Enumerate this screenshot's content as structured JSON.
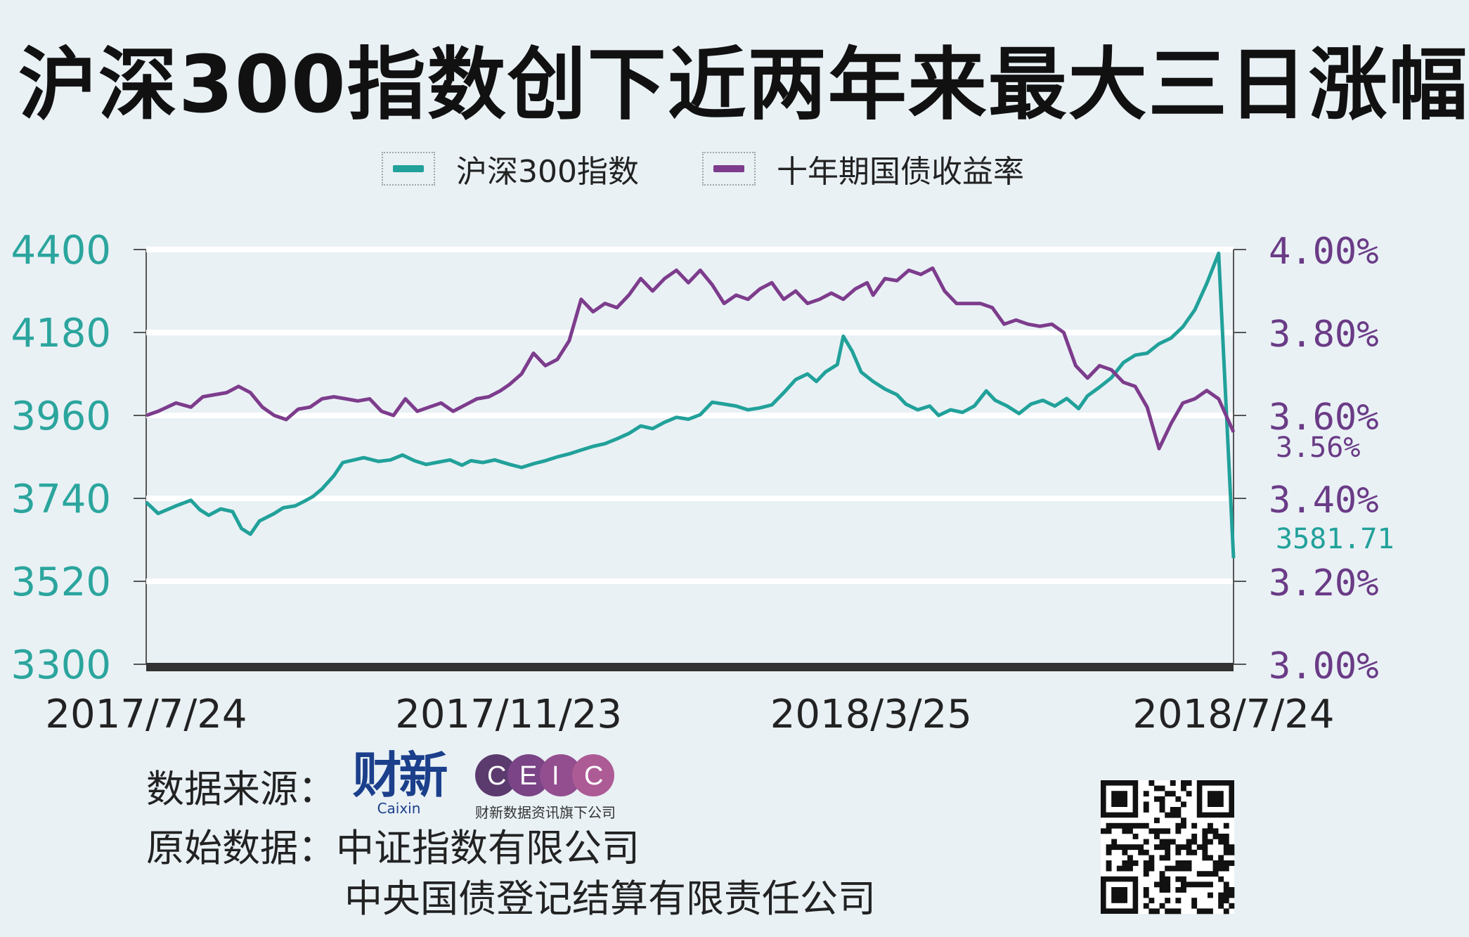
{
  "title": "沪深300指数创下近两年来最大三日涨幅",
  "legend": {
    "series1_label": "沪深300指数",
    "series2_label": "十年期国债收益率"
  },
  "colors": {
    "series1": "#21a19a",
    "series2": "#7d3c8c",
    "left_axis_text": "#2ba59d",
    "right_axis_text": "#6a3b86",
    "gridline": "#ffffff",
    "plot_bg": "#e9f1f5"
  },
  "chart_data": {
    "type": "line",
    "x_tick_labels": [
      "2017/7/24",
      "2017/11/23",
      "2018/3/25",
      "2018/7/24"
    ],
    "x_range": [
      "2017-07-24",
      "2018-07-24"
    ],
    "y_left": {
      "ticks": [
        "4400",
        "4180",
        "3960",
        "3740",
        "3520",
        "3300"
      ],
      "range": [
        3300,
        4400
      ]
    },
    "y_right": {
      "ticks": [
        "4.00%",
        "3.80%",
        "3.60%",
        "3.40%",
        "3.20%",
        "3.00%"
      ],
      "range": [
        3.0,
        4.0
      ]
    },
    "grid": true,
    "legend_position": "top-center",
    "end_labels": {
      "series1": "3581.71",
      "series2": "3.56%"
    },
    "series": [
      {
        "name": "沪深300指数",
        "axis": "left",
        "points": [
          [
            "2017-07-24",
            3730
          ],
          [
            "2017-07-28",
            3700
          ],
          [
            "2017-08-03",
            3720
          ],
          [
            "2017-08-08",
            3735
          ],
          [
            "2017-08-11",
            3710
          ],
          [
            "2017-08-14",
            3695
          ],
          [
            "2017-08-18",
            3712
          ],
          [
            "2017-08-22",
            3705
          ],
          [
            "2017-08-25",
            3660
          ],
          [
            "2017-08-28",
            3645
          ],
          [
            "2017-08-31",
            3680
          ],
          [
            "2017-09-05",
            3700
          ],
          [
            "2017-09-08",
            3715
          ],
          [
            "2017-09-12",
            3720
          ],
          [
            "2017-09-15",
            3732
          ],
          [
            "2017-09-18",
            3745
          ],
          [
            "2017-09-21",
            3765
          ],
          [
            "2017-09-25",
            3800
          ],
          [
            "2017-09-28",
            3835
          ],
          [
            "2017-10-05",
            3848
          ],
          [
            "2017-10-10",
            3838
          ],
          [
            "2017-10-14",
            3842
          ],
          [
            "2017-10-18",
            3855
          ],
          [
            "2017-10-22",
            3840
          ],
          [
            "2017-10-26",
            3830
          ],
          [
            "2017-10-30",
            3836
          ],
          [
            "2017-11-03",
            3842
          ],
          [
            "2017-11-07",
            3828
          ],
          [
            "2017-11-10",
            3840
          ],
          [
            "2017-11-14",
            3835
          ],
          [
            "2017-11-18",
            3842
          ],
          [
            "2017-11-23",
            3830
          ],
          [
            "2017-11-27",
            3822
          ],
          [
            "2017-12-01",
            3832
          ],
          [
            "2017-12-05",
            3840
          ],
          [
            "2017-12-09",
            3850
          ],
          [
            "2017-12-13",
            3858
          ],
          [
            "2017-12-17",
            3868
          ],
          [
            "2017-12-21",
            3878
          ],
          [
            "2017-12-25",
            3885
          ],
          [
            "2017-12-29",
            3898
          ],
          [
            "2018-01-02",
            3912
          ],
          [
            "2018-01-06",
            3932
          ],
          [
            "2018-01-10",
            3925
          ],
          [
            "2018-01-14",
            3942
          ],
          [
            "2018-01-18",
            3955
          ],
          [
            "2018-01-22",
            3950
          ],
          [
            "2018-01-26",
            3962
          ],
          [
            "2018-01-30",
            3995
          ],
          [
            "2018-02-03",
            3990
          ],
          [
            "2018-02-07",
            3985
          ],
          [
            "2018-02-11",
            3975
          ],
          [
            "2018-02-15",
            3980
          ],
          [
            "2018-02-19",
            3988
          ],
          [
            "2018-02-23",
            4020
          ],
          [
            "2018-02-27",
            4055
          ],
          [
            "2018-03-03",
            4070
          ],
          [
            "2018-03-06",
            4050
          ],
          [
            "2018-03-09",
            4075
          ],
          [
            "2018-03-13",
            4095
          ],
          [
            "2018-03-15",
            4170
          ],
          [
            "2018-03-18",
            4130
          ],
          [
            "2018-03-21",
            4075
          ],
          [
            "2018-03-25",
            4050
          ],
          [
            "2018-03-29",
            4030
          ],
          [
            "2018-04-02",
            4015
          ],
          [
            "2018-04-05",
            3990
          ],
          [
            "2018-04-09",
            3975
          ],
          [
            "2018-04-13",
            3985
          ],
          [
            "2018-04-16",
            3960
          ],
          [
            "2018-04-20",
            3975
          ],
          [
            "2018-04-24",
            3968
          ],
          [
            "2018-04-28",
            3985
          ],
          [
            "2018-05-02",
            4025
          ],
          [
            "2018-05-05",
            4000
          ],
          [
            "2018-05-09",
            3985
          ],
          [
            "2018-05-13",
            3965
          ],
          [
            "2018-05-17",
            3990
          ],
          [
            "2018-05-21",
            4000
          ],
          [
            "2018-05-25",
            3985
          ],
          [
            "2018-05-29",
            4005
          ],
          [
            "2018-06-02",
            3978
          ],
          [
            "2018-06-05",
            4012
          ],
          [
            "2018-06-09",
            4035
          ],
          [
            "2018-06-13",
            4060
          ],
          [
            "2018-06-17",
            4100
          ],
          [
            "2018-06-21",
            4120
          ],
          [
            "2018-06-25",
            4125
          ],
          [
            "2018-06-29",
            4150
          ],
          [
            "2018-07-03",
            4165
          ],
          [
            "2018-07-07",
            4195
          ],
          [
            "2018-07-11",
            4240
          ],
          [
            "2018-07-15",
            4310
          ],
          [
            "2018-07-19",
            4390
          ],
          [
            "2018-07-24",
            3581.71
          ]
        ]
      },
      {
        "name": "十年期国债收益率",
        "axis": "right",
        "points": [
          [
            "2017-07-24",
            3.6
          ],
          [
            "2017-07-28",
            3.61
          ],
          [
            "2017-08-03",
            3.63
          ],
          [
            "2017-08-08",
            3.62
          ],
          [
            "2017-08-12",
            3.645
          ],
          [
            "2017-08-16",
            3.65
          ],
          [
            "2017-08-20",
            3.655
          ],
          [
            "2017-08-24",
            3.67
          ],
          [
            "2017-08-28",
            3.655
          ],
          [
            "2017-09-01",
            3.62
          ],
          [
            "2017-09-05",
            3.6
          ],
          [
            "2017-09-09",
            3.59
          ],
          [
            "2017-09-13",
            3.615
          ],
          [
            "2017-09-17",
            3.62
          ],
          [
            "2017-09-21",
            3.64
          ],
          [
            "2017-09-25",
            3.645
          ],
          [
            "2017-09-29",
            3.64
          ],
          [
            "2017-10-03",
            3.635
          ],
          [
            "2017-10-07",
            3.64
          ],
          [
            "2017-10-11",
            3.61
          ],
          [
            "2017-10-15",
            3.6
          ],
          [
            "2017-10-19",
            3.64
          ],
          [
            "2017-10-23",
            3.61
          ],
          [
            "2017-10-27",
            3.62
          ],
          [
            "2017-10-31",
            3.63
          ],
          [
            "2017-11-04",
            3.61
          ],
          [
            "2017-11-08",
            3.625
          ],
          [
            "2017-11-12",
            3.64
          ],
          [
            "2017-11-16",
            3.645
          ],
          [
            "2017-11-20",
            3.66
          ],
          [
            "2017-11-23",
            3.675
          ],
          [
            "2017-11-27",
            3.7
          ],
          [
            "2017-12-01",
            3.75
          ],
          [
            "2017-12-05",
            3.72
          ],
          [
            "2017-12-09",
            3.735
          ],
          [
            "2017-12-13",
            3.78
          ],
          [
            "2017-12-17",
            3.88
          ],
          [
            "2017-12-21",
            3.85
          ],
          [
            "2017-12-25",
            3.87
          ],
          [
            "2017-12-29",
            3.86
          ],
          [
            "2018-01-02",
            3.89
          ],
          [
            "2018-01-06",
            3.93
          ],
          [
            "2018-01-10",
            3.9
          ],
          [
            "2018-01-14",
            3.93
          ],
          [
            "2018-01-18",
            3.95
          ],
          [
            "2018-01-22",
            3.92
          ],
          [
            "2018-01-26",
            3.95
          ],
          [
            "2018-01-30",
            3.915
          ],
          [
            "2018-02-03",
            3.87
          ],
          [
            "2018-02-07",
            3.89
          ],
          [
            "2018-02-11",
            3.88
          ],
          [
            "2018-02-15",
            3.905
          ],
          [
            "2018-02-19",
            3.92
          ],
          [
            "2018-02-23",
            3.88
          ],
          [
            "2018-02-27",
            3.9
          ],
          [
            "2018-03-03",
            3.87
          ],
          [
            "2018-03-07",
            3.88
          ],
          [
            "2018-03-11",
            3.895
          ],
          [
            "2018-03-15",
            3.88
          ],
          [
            "2018-03-19",
            3.905
          ],
          [
            "2018-03-23",
            3.92
          ],
          [
            "2018-03-25",
            3.89
          ],
          [
            "2018-03-29",
            3.93
          ],
          [
            "2018-04-02",
            3.925
          ],
          [
            "2018-04-06",
            3.95
          ],
          [
            "2018-04-10",
            3.94
          ],
          [
            "2018-04-14",
            3.955
          ],
          [
            "2018-04-18",
            3.9
          ],
          [
            "2018-04-22",
            3.87
          ],
          [
            "2018-04-26",
            3.87
          ],
          [
            "2018-04-30",
            3.87
          ],
          [
            "2018-05-04",
            3.86
          ],
          [
            "2018-05-08",
            3.82
          ],
          [
            "2018-05-12",
            3.83
          ],
          [
            "2018-05-16",
            3.82
          ],
          [
            "2018-05-20",
            3.815
          ],
          [
            "2018-05-24",
            3.82
          ],
          [
            "2018-05-28",
            3.8
          ],
          [
            "2018-06-01",
            3.72
          ],
          [
            "2018-06-05",
            3.69
          ],
          [
            "2018-06-09",
            3.72
          ],
          [
            "2018-06-13",
            3.71
          ],
          [
            "2018-06-17",
            3.68
          ],
          [
            "2018-06-21",
            3.67
          ],
          [
            "2018-06-25",
            3.62
          ],
          [
            "2018-06-29",
            3.52
          ],
          [
            "2018-07-03",
            3.58
          ],
          [
            "2018-07-07",
            3.63
          ],
          [
            "2018-07-11",
            3.64
          ],
          [
            "2018-07-15",
            3.66
          ],
          [
            "2018-07-19",
            3.64
          ],
          [
            "2018-07-24",
            3.56
          ]
        ]
      }
    ]
  },
  "footer": {
    "source_label": "数据来源：",
    "original_label": "原始数据：",
    "original_line1": "中证指数有限公司",
    "original_line2": "中央国债登记结算有限责任公司",
    "caixin_logo_text": "财新",
    "caixin_logo_sub": "Caixin",
    "ceic_logo_text": "CEIC",
    "ceic_sub": "财新数据资讯旗下公司"
  }
}
